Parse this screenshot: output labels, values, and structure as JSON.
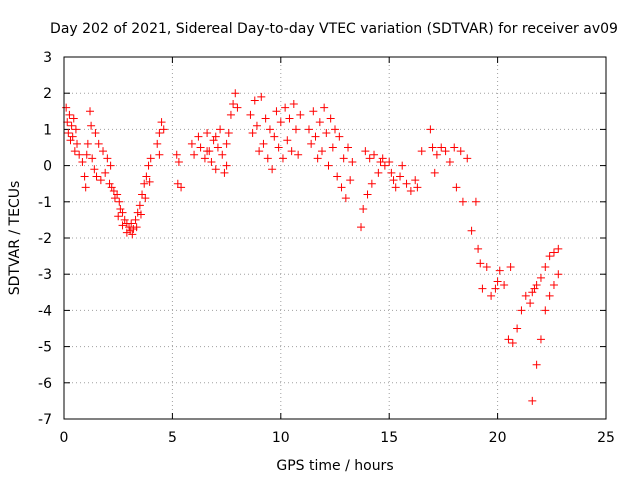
{
  "chart_data": {
    "type": "scatter",
    "title": "Day 202 of 2021, Sidereal Day-to-day VTEC variation (SDTVAR) for receiver av09",
    "xlabel": "GPS time / hours",
    "ylabel": "SDTVAR / TECUs",
    "xlim": [
      0,
      25
    ],
    "ylim": [
      -7,
      3
    ],
    "xticks": [
      0,
      5,
      10,
      15,
      20,
      25
    ],
    "yticks": [
      -7,
      -6,
      -5,
      -4,
      -3,
      -2,
      -1,
      0,
      1,
      2,
      3
    ],
    "grid": true,
    "marker": "+",
    "color": "#ff0000",
    "series": [
      {
        "name": "SDTVAR",
        "points": [
          [
            0.1,
            1.6
          ],
          [
            0.15,
            1.2
          ],
          [
            0.2,
            0.9
          ],
          [
            0.25,
            1.4
          ],
          [
            0.3,
            0.7
          ],
          [
            0.35,
            1.1
          ],
          [
            0.4,
            0.8
          ],
          [
            0.45,
            1.3
          ],
          [
            0.5,
            0.4
          ],
          [
            0.55,
            1.0
          ],
          [
            0.6,
            0.6
          ],
          [
            0.7,
            0.3
          ],
          [
            0.85,
            0.1
          ],
          [
            0.95,
            -0.3
          ],
          [
            1.0,
            -0.6
          ],
          [
            1.05,
            0.3
          ],
          [
            1.1,
            0.6
          ],
          [
            1.2,
            1.5
          ],
          [
            1.25,
            1.1
          ],
          [
            1.3,
            0.2
          ],
          [
            1.4,
            -0.1
          ],
          [
            1.45,
            0.9
          ],
          [
            1.5,
            -0.3
          ],
          [
            1.6,
            0.6
          ],
          [
            1.7,
            -0.4
          ],
          [
            1.8,
            0.4
          ],
          [
            1.9,
            -0.2
          ],
          [
            2.0,
            0.2
          ],
          [
            2.1,
            -0.5
          ],
          [
            2.15,
            0.0
          ],
          [
            2.2,
            -0.6
          ],
          [
            2.3,
            -0.7
          ],
          [
            2.35,
            -0.9
          ],
          [
            2.45,
            -0.8
          ],
          [
            2.55,
            -1.0
          ],
          [
            2.6,
            -1.2
          ],
          [
            2.7,
            -1.3
          ],
          [
            2.8,
            -1.5
          ],
          [
            2.9,
            -1.6
          ],
          [
            3.0,
            -1.7
          ],
          [
            3.05,
            -1.8
          ],
          [
            3.1,
            -1.6
          ],
          [
            3.2,
            -1.75
          ],
          [
            3.3,
            -1.5
          ],
          [
            3.4,
            -1.3
          ],
          [
            3.5,
            -1.1
          ],
          [
            3.6,
            -0.8
          ],
          [
            3.7,
            -0.5
          ],
          [
            3.8,
            -0.3
          ],
          [
            3.9,
            0.0
          ],
          [
            4.0,
            0.2
          ],
          [
            2.5,
            -1.4
          ],
          [
            2.7,
            -1.65
          ],
          [
            2.9,
            -1.85
          ],
          [
            3.15,
            -1.9
          ],
          [
            3.35,
            -1.7
          ],
          [
            3.55,
            -1.35
          ],
          [
            3.75,
            -0.9
          ],
          [
            3.95,
            -0.45
          ],
          [
            4.3,
            0.6
          ],
          [
            4.4,
            0.9
          ],
          [
            4.5,
            1.2
          ],
          [
            4.6,
            1.0
          ],
          [
            4.4,
            0.3
          ],
          [
            5.2,
            0.3
          ],
          [
            5.3,
            0.1
          ],
          [
            5.25,
            -0.5
          ],
          [
            5.4,
            -0.6
          ],
          [
            5.9,
            0.6
          ],
          [
            6.0,
            0.3
          ],
          [
            6.2,
            0.8
          ],
          [
            6.3,
            0.5
          ],
          [
            6.5,
            0.2
          ],
          [
            6.6,
            0.9
          ],
          [
            6.7,
            0.4
          ],
          [
            6.8,
            0.1
          ],
          [
            6.9,
            0.7
          ],
          [
            7.0,
            -0.1
          ],
          [
            7.1,
            0.5
          ],
          [
            7.2,
            1.0
          ],
          [
            7.3,
            0.3
          ],
          [
            7.4,
            -0.2
          ],
          [
            7.5,
            0.6
          ],
          [
            7.6,
            0.9
          ],
          [
            7.7,
            1.4
          ],
          [
            7.8,
            1.7
          ],
          [
            7.9,
            2.0
          ],
          [
            8.0,
            1.6
          ],
          [
            7.5,
            0.0
          ],
          [
            7.0,
            0.8
          ],
          [
            6.6,
            0.4
          ],
          [
            8.6,
            1.4
          ],
          [
            8.7,
            0.9
          ],
          [
            8.8,
            1.8
          ],
          [
            8.9,
            1.1
          ],
          [
            9.0,
            0.4
          ],
          [
            9.1,
            1.9
          ],
          [
            9.2,
            0.6
          ],
          [
            9.3,
            1.3
          ],
          [
            9.4,
            0.2
          ],
          [
            9.5,
            1.0
          ],
          [
            9.6,
            -0.1
          ],
          [
            9.7,
            0.8
          ],
          [
            9.8,
            1.5
          ],
          [
            9.9,
            0.5
          ],
          [
            10.0,
            1.2
          ],
          [
            10.1,
            0.2
          ],
          [
            10.2,
            1.6
          ],
          [
            10.3,
            0.7
          ],
          [
            10.4,
            1.3
          ],
          [
            10.5,
            0.4
          ],
          [
            10.6,
            1.7
          ],
          [
            10.7,
            1.0
          ],
          [
            10.8,
            0.3
          ],
          [
            10.9,
            1.4
          ],
          [
            11.3,
            1.0
          ],
          [
            11.4,
            0.6
          ],
          [
            11.5,
            1.5
          ],
          [
            11.6,
            0.8
          ],
          [
            11.7,
            0.2
          ],
          [
            11.8,
            1.2
          ],
          [
            11.9,
            0.4
          ],
          [
            12.0,
            1.6
          ],
          [
            12.1,
            0.9
          ],
          [
            12.2,
            0.0
          ],
          [
            12.3,
            1.3
          ],
          [
            12.4,
            0.5
          ],
          [
            12.5,
            1.0
          ],
          [
            12.6,
            -0.3
          ],
          [
            12.7,
            0.8
          ],
          [
            12.8,
            -0.6
          ],
          [
            12.9,
            0.2
          ],
          [
            13.0,
            -0.9
          ],
          [
            13.1,
            0.5
          ],
          [
            13.2,
            -0.4
          ],
          [
            13.3,
            0.1
          ],
          [
            13.7,
            -1.7
          ],
          [
            13.8,
            -1.2
          ],
          [
            13.9,
            0.4
          ],
          [
            14.0,
            -0.8
          ],
          [
            14.1,
            0.2
          ],
          [
            14.2,
            -0.5
          ],
          [
            14.3,
            0.3
          ],
          [
            14.5,
            -0.2
          ],
          [
            14.6,
            0.1
          ],
          [
            14.7,
            0.2
          ],
          [
            14.8,
            0.0
          ],
          [
            15.0,
            0.1
          ],
          [
            15.1,
            -0.2
          ],
          [
            15.2,
            -0.4
          ],
          [
            15.3,
            -0.6
          ],
          [
            15.5,
            -0.3
          ],
          [
            15.6,
            0.0
          ],
          [
            15.8,
            -0.5
          ],
          [
            16.0,
            -0.7
          ],
          [
            16.2,
            -0.4
          ],
          [
            16.3,
            -0.6
          ],
          [
            16.5,
            0.4
          ],
          [
            16.9,
            1.0
          ],
          [
            17.0,
            0.5
          ],
          [
            17.1,
            -0.2
          ],
          [
            17.2,
            0.3
          ],
          [
            17.4,
            0.5
          ],
          [
            17.6,
            0.4
          ],
          [
            17.8,
            0.1
          ],
          [
            18.0,
            0.5
          ],
          [
            18.1,
            -0.6
          ],
          [
            18.3,
            0.4
          ],
          [
            18.4,
            -1.0
          ],
          [
            18.6,
            0.2
          ],
          [
            18.8,
            -1.8
          ],
          [
            19.0,
            -1.0
          ],
          [
            19.1,
            -2.3
          ],
          [
            19.2,
            -2.7
          ],
          [
            19.3,
            -3.4
          ],
          [
            19.5,
            -2.8
          ],
          [
            19.7,
            -3.6
          ],
          [
            19.9,
            -3.4
          ],
          [
            20.0,
            -3.2
          ],
          [
            20.1,
            -2.9
          ],
          [
            20.3,
            -3.3
          ],
          [
            20.6,
            -2.8
          ],
          [
            20.5,
            -4.8
          ],
          [
            20.7,
            -4.9
          ],
          [
            20.9,
            -4.5
          ],
          [
            21.1,
            -4.0
          ],
          [
            21.3,
            -3.6
          ],
          [
            21.5,
            -3.8
          ],
          [
            21.7,
            -3.4
          ],
          [
            21.6,
            -6.5
          ],
          [
            21.8,
            -5.5
          ],
          [
            22.0,
            -4.8
          ],
          [
            22.2,
            -4.0
          ],
          [
            22.4,
            -3.6
          ],
          [
            22.6,
            -3.3
          ],
          [
            22.8,
            -3.0
          ],
          [
            21.6,
            -3.5
          ],
          [
            21.8,
            -3.3
          ],
          [
            22.0,
            -3.1
          ],
          [
            22.2,
            -2.8
          ],
          [
            22.4,
            -2.5
          ],
          [
            22.6,
            -2.4
          ],
          [
            22.8,
            -2.3
          ]
        ]
      }
    ]
  }
}
